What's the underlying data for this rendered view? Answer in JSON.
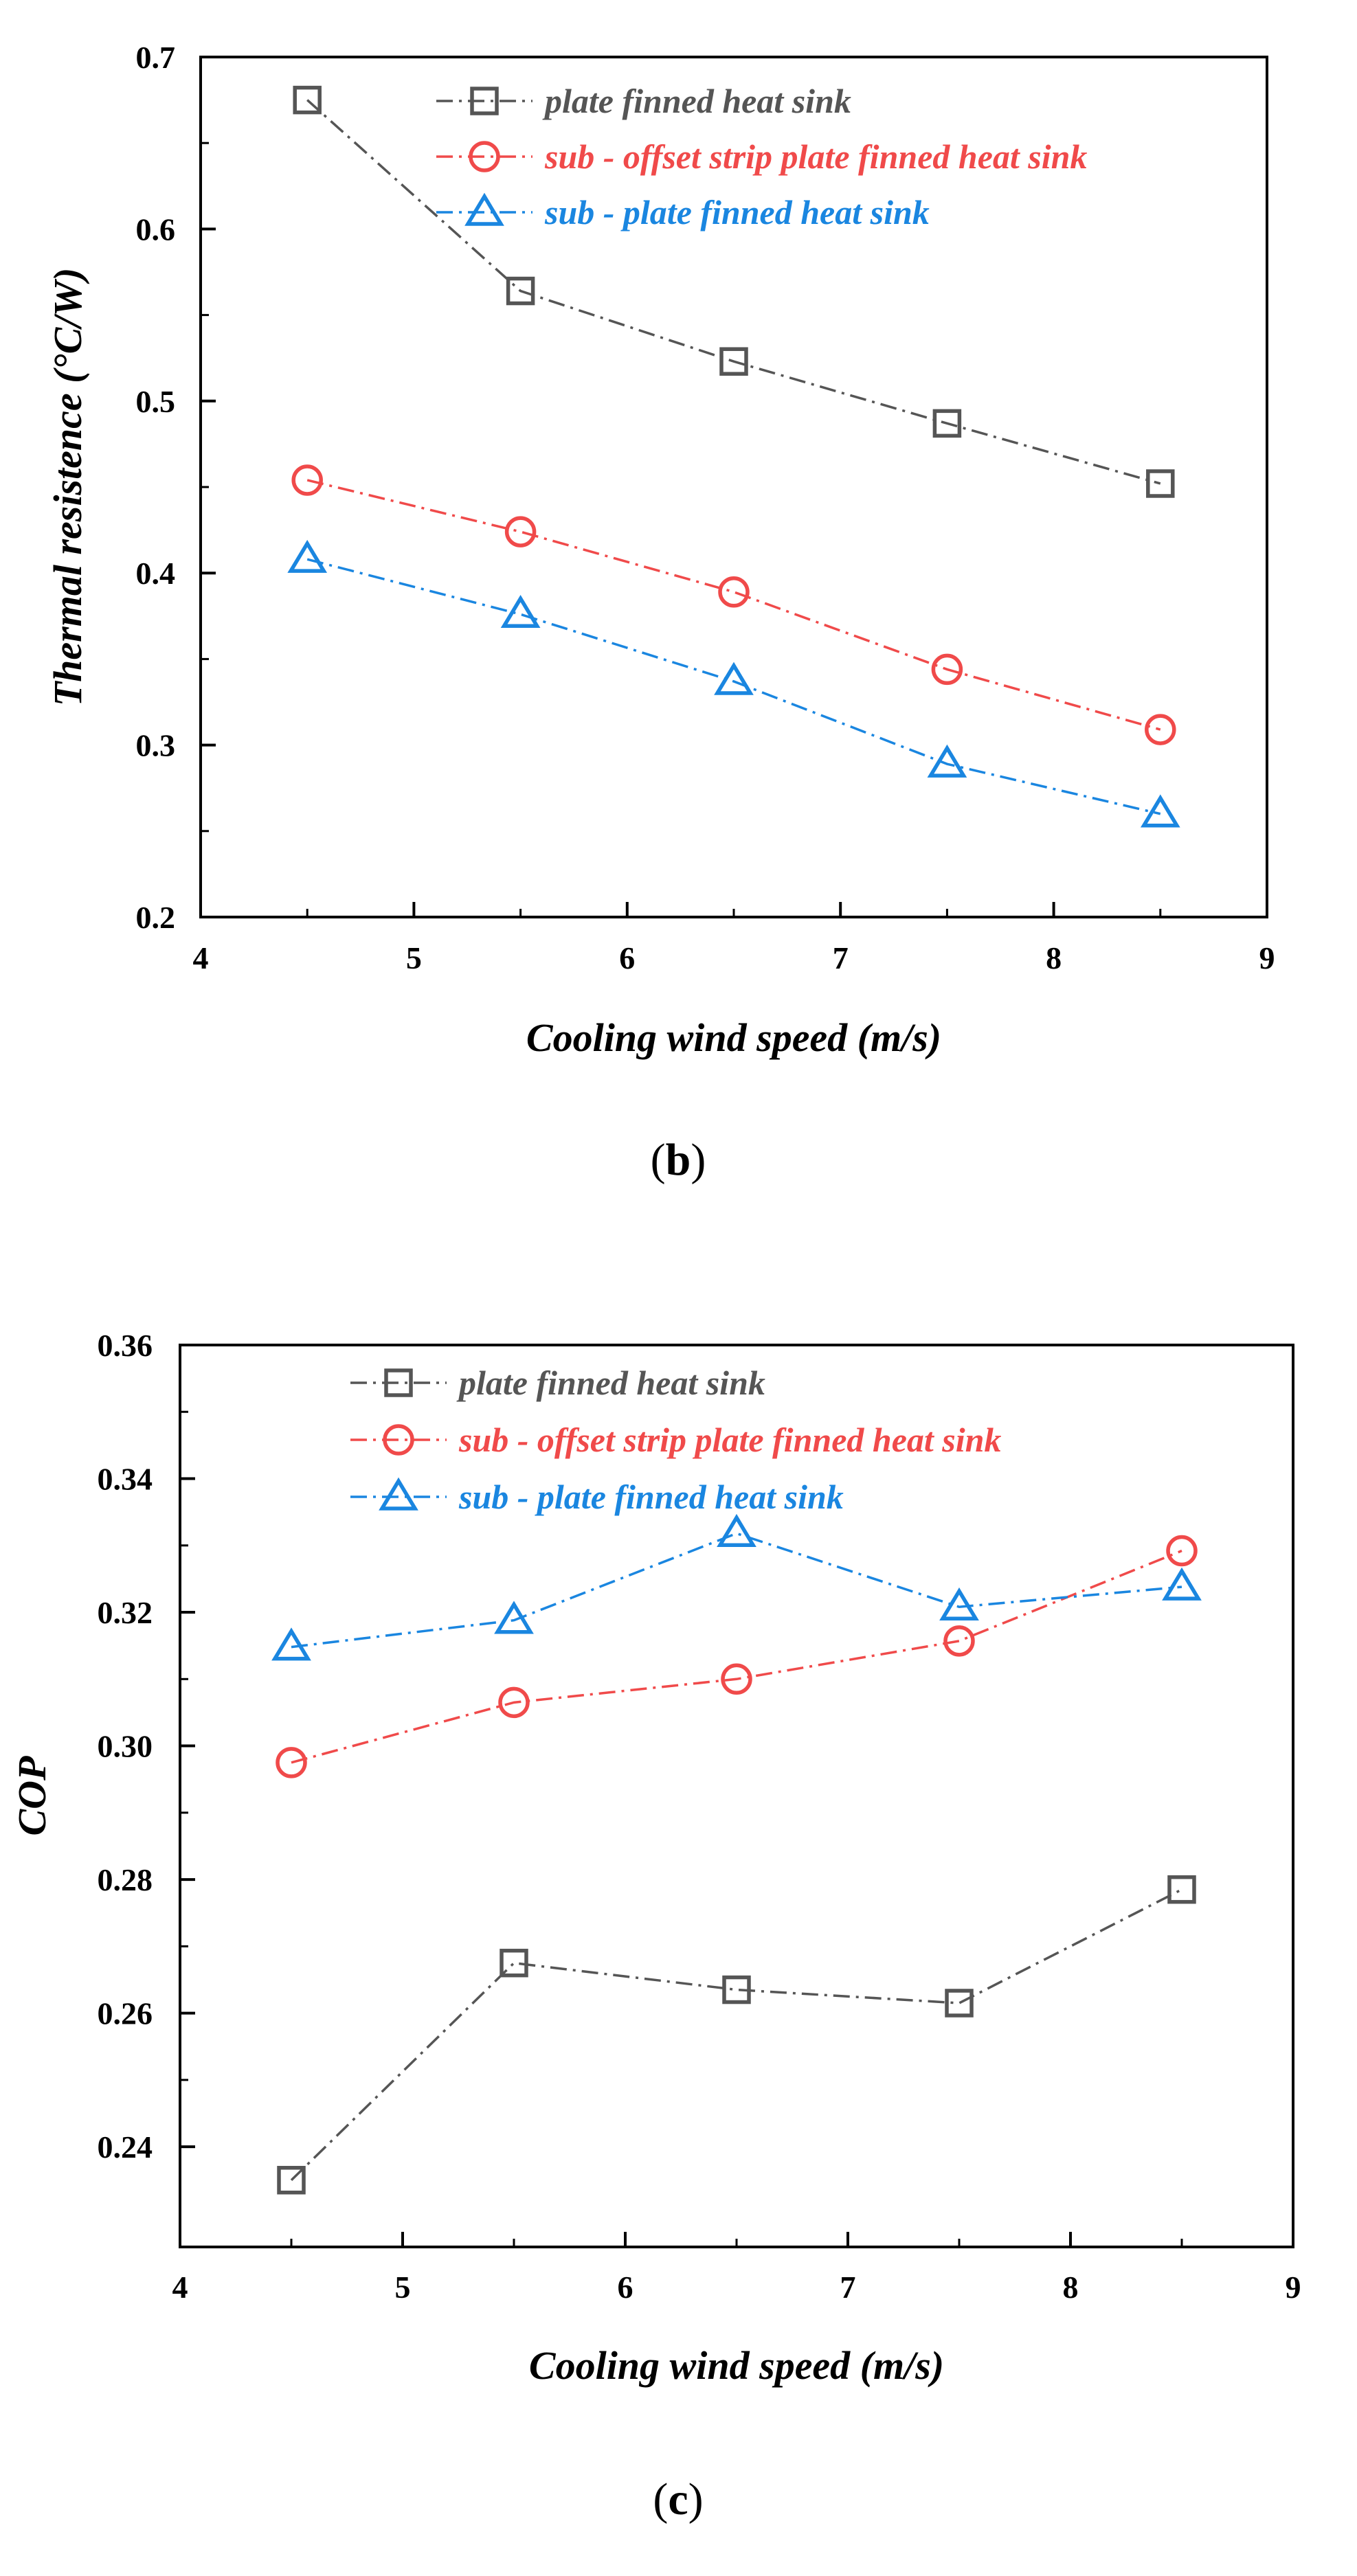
{
  "chart_data": [
    {
      "panel": "(b)",
      "panel_letter": "b",
      "type": "line",
      "xlabel": "Cooling wind speed (m/s)",
      "ylabel": "Thermal resistence (°C/W)",
      "xlim": [
        4,
        9
      ],
      "ylim": [
        0.2,
        0.7
      ],
      "xticks": [
        4,
        5,
        6,
        7,
        8,
        9
      ],
      "xtick_labels": [
        "4",
        "5",
        "6",
        "7",
        "8",
        "9"
      ],
      "yticks": [
        0.2,
        0.3,
        0.4,
        0.5,
        0.6,
        0.7
      ],
      "ytick_labels": [
        "0.2",
        "0.3",
        "0.4",
        "0.5",
        "0.6",
        "0.7"
      ],
      "x": [
        4.5,
        5.5,
        6.5,
        7.5,
        8.5
      ],
      "legend_position": "top-center",
      "series": [
        {
          "name": "plate finned heat sink",
          "marker": "square",
          "color": "#555555",
          "values": [
            0.675,
            0.564,
            0.523,
            0.487,
            0.452
          ]
        },
        {
          "name": "sub - offset strip plate finned heat sink",
          "marker": "circle",
          "color": "#f04a4a",
          "values": [
            0.454,
            0.424,
            0.389,
            0.344,
            0.309
          ]
        },
        {
          "name": "sub - plate finned heat sink",
          "marker": "triangle",
          "color": "#1a86e0",
          "values": [
            0.408,
            0.376,
            0.337,
            0.289,
            0.26
          ]
        }
      ]
    },
    {
      "panel": "(c)",
      "panel_letter": "c",
      "type": "line",
      "xlabel": "Cooling wind speed (m/s)",
      "ylabel": "COP",
      "xlim": [
        4,
        9
      ],
      "ylim": [
        0.225,
        0.36
      ],
      "xticks": [
        4,
        5,
        6,
        7,
        8,
        9
      ],
      "xtick_labels": [
        "4",
        "5",
        "6",
        "7",
        "8",
        "9"
      ],
      "yticks": [
        0.24,
        0.26,
        0.28,
        0.3,
        0.32,
        0.34,
        0.36
      ],
      "ytick_labels": [
        "0.24",
        "0.26",
        "0.28",
        "0.30",
        "0.32",
        "0.34",
        "0.36"
      ],
      "x": [
        4.5,
        5.5,
        6.5,
        7.5,
        8.5
      ],
      "legend_position": "top-left",
      "series": [
        {
          "name": "plate finned heat sink",
          "marker": "square",
          "color": "#555555",
          "values": [
            0.235,
            0.2675,
            0.2635,
            0.2615,
            0.2785
          ]
        },
        {
          "name": "sub - offset strip plate finned heat sink",
          "marker": "circle",
          "color": "#f04a4a",
          "values": [
            0.2975,
            0.3065,
            0.31,
            0.3157,
            0.3292
          ]
        },
        {
          "name": "sub - plate finned heat sink",
          "marker": "triangle",
          "color": "#1a86e0",
          "values": [
            0.3148,
            0.3188,
            0.3318,
            0.3208,
            0.3238
          ]
        }
      ]
    }
  ]
}
